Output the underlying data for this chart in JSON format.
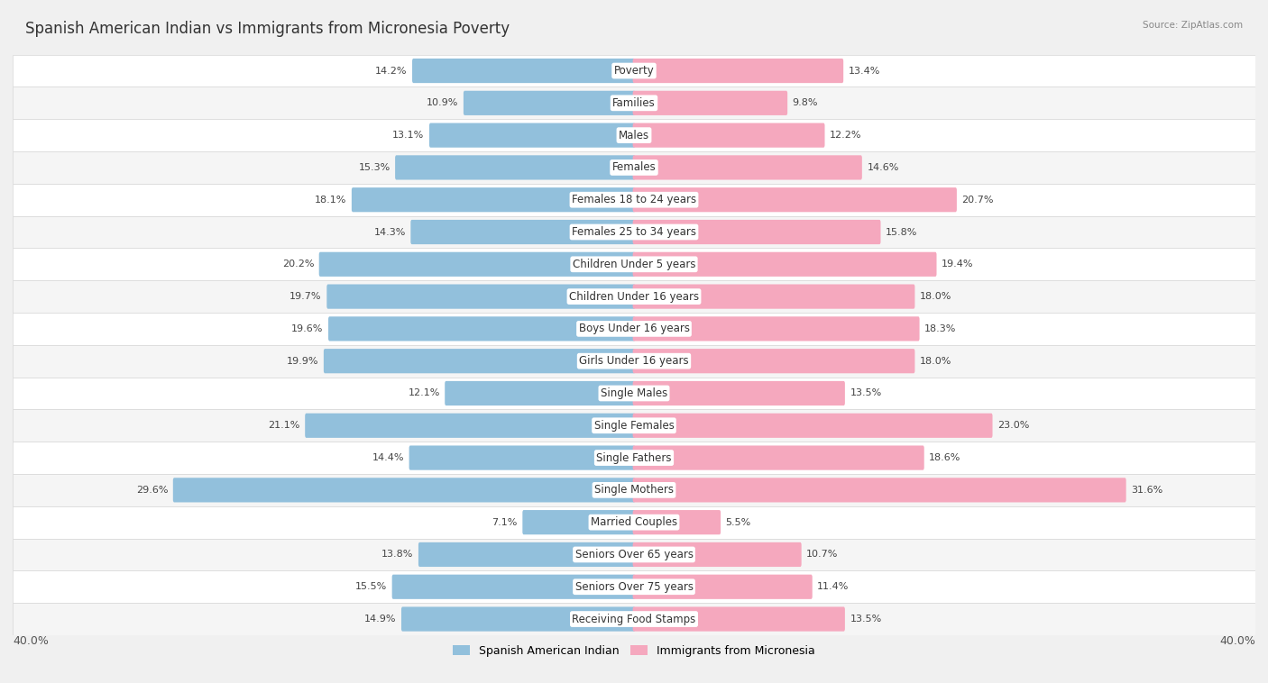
{
  "title": "Spanish American Indian vs Immigrants from Micronesia Poverty",
  "source": "Source: ZipAtlas.com",
  "categories": [
    "Poverty",
    "Families",
    "Males",
    "Females",
    "Females 18 to 24 years",
    "Females 25 to 34 years",
    "Children Under 5 years",
    "Children Under 16 years",
    "Boys Under 16 years",
    "Girls Under 16 years",
    "Single Males",
    "Single Females",
    "Single Fathers",
    "Single Mothers",
    "Married Couples",
    "Seniors Over 65 years",
    "Seniors Over 75 years",
    "Receiving Food Stamps"
  ],
  "left_values": [
    14.2,
    10.9,
    13.1,
    15.3,
    18.1,
    14.3,
    20.2,
    19.7,
    19.6,
    19.9,
    12.1,
    21.1,
    14.4,
    29.6,
    7.1,
    13.8,
    15.5,
    14.9
  ],
  "right_values": [
    13.4,
    9.8,
    12.2,
    14.6,
    20.7,
    15.8,
    19.4,
    18.0,
    18.3,
    18.0,
    13.5,
    23.0,
    18.6,
    31.6,
    5.5,
    10.7,
    11.4,
    13.5
  ],
  "left_color": "#92c0dc",
  "right_color": "#f5a8be",
  "left_label": "Spanish American Indian",
  "right_label": "Immigrants from Micronesia",
  "max_val": 40.0,
  "bg_color": "#f0f0f0",
  "row_color_even": "#ffffff",
  "row_color_odd": "#f5f5f5",
  "title_fontsize": 12,
  "label_fontsize": 8.5,
  "value_fontsize": 8,
  "axis_fontsize": 9
}
